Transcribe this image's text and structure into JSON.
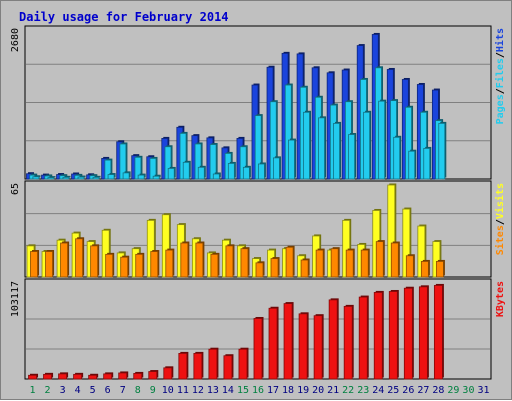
{
  "title": "Daily usage for February 2014",
  "colors": {
    "hits": "#1a44dd",
    "files": "#22ccee",
    "pages": "#22ccee",
    "visits": "#ffff22",
    "sites": "#ff8800",
    "kbytes": "#ee1111",
    "weekend_day": "#008040",
    "weekday_day": "#000080"
  },
  "chart_data": [
    {
      "type": "bar",
      "panel": "hits-files-pages",
      "ymax_label": "2680",
      "ylim": [
        0,
        2680
      ],
      "legend": [
        {
          "key": "pages",
          "label": "Pages"
        },
        {
          "key": "files",
          "label": "Files"
        },
        {
          "key": "hits",
          "label": "Hits"
        }
      ],
      "series": [
        {
          "name": "Hits",
          "key": "hits",
          "values": [
            95,
            70,
            80,
            90,
            75,
            370,
            670,
            420,
            400,
            730,
            930,
            780,
            740,
            560,
            730,
            1690,
            2010,
            2260,
            2250,
            2000,
            1910,
            1960,
            2400,
            2600,
            1970,
            1790,
            1700,
            1600,
            0,
            0,
            0
          ]
        },
        {
          "name": "Files",
          "key": "files",
          "values": [
            70,
            55,
            60,
            65,
            60,
            340,
            630,
            390,
            370,
            580,
            820,
            630,
            620,
            460,
            580,
            1140,
            1390,
            1690,
            1650,
            1470,
            1330,
            1390,
            1790,
            2000,
            1410,
            1290,
            1200,
            1050,
            0,
            0,
            0
          ]
        },
        {
          "name": "Pages",
          "key": "pages",
          "values": [
            40,
            25,
            30,
            35,
            30,
            80,
            110,
            70,
            50,
            190,
            300,
            210,
            90,
            280,
            210,
            270,
            380,
            700,
            1200,
            1100,
            1000,
            800,
            1200,
            1400,
            750,
            500,
            550,
            1000,
            0,
            0,
            0
          ]
        }
      ]
    },
    {
      "type": "bar",
      "panel": "visits-sites",
      "ymax_label": "65",
      "ylim": [
        0,
        65
      ],
      "legend": [
        {
          "key": "sites",
          "label": "Sites"
        },
        {
          "key": "visits",
          "label": "Visits"
        }
      ],
      "series": [
        {
          "name": "Visits",
          "key": "visits",
          "values": [
            22,
            18,
            26,
            31,
            25,
            33,
            17,
            20,
            40,
            44,
            37,
            27,
            17,
            26,
            22,
            13,
            19,
            20,
            15,
            29,
            19,
            40,
            23,
            47,
            65,
            48,
            36,
            25,
            0,
            0,
            0
          ]
        },
        {
          "name": "Sites",
          "key": "sites",
          "values": [
            18,
            18,
            24,
            27,
            22,
            16,
            14,
            16,
            18,
            19,
            24,
            24,
            16,
            22,
            20,
            10,
            13,
            21,
            12,
            19,
            20,
            19,
            19,
            25,
            24,
            15,
            11,
            11,
            0,
            0,
            0
          ]
        }
      ]
    },
    {
      "type": "bar",
      "panel": "kbytes",
      "ymax_label": "103117",
      "ylim": [
        0,
        103117
      ],
      "legend": [
        {
          "key": "kbytes",
          "label": "KBytes"
        }
      ],
      "series": [
        {
          "name": "KBytes",
          "key": "kbytes",
          "values": [
            4000,
            5000,
            5500,
            5000,
            4000,
            5500,
            6500,
            6000,
            8000,
            12000,
            27500,
            27500,
            32000,
            25000,
            32000,
            65000,
            76000,
            81000,
            70000,
            68000,
            85000,
            78000,
            88000,
            93000,
            94000,
            97500,
            99000,
            100500,
            0,
            0,
            0
          ]
        }
      ]
    }
  ],
  "days": [
    "1",
    "2",
    "3",
    "4",
    "5",
    "6",
    "7",
    "8",
    "9",
    "10",
    "11",
    "12",
    "13",
    "14",
    "15",
    "16",
    "17",
    "18",
    "19",
    "20",
    "21",
    "22",
    "23",
    "24",
    "25",
    "26",
    "27",
    "28",
    "29",
    "30",
    "31"
  ],
  "weekend_days": [
    "1",
    "2",
    "8",
    "9",
    "15",
    "16",
    "22",
    "23",
    "29",
    "30"
  ]
}
